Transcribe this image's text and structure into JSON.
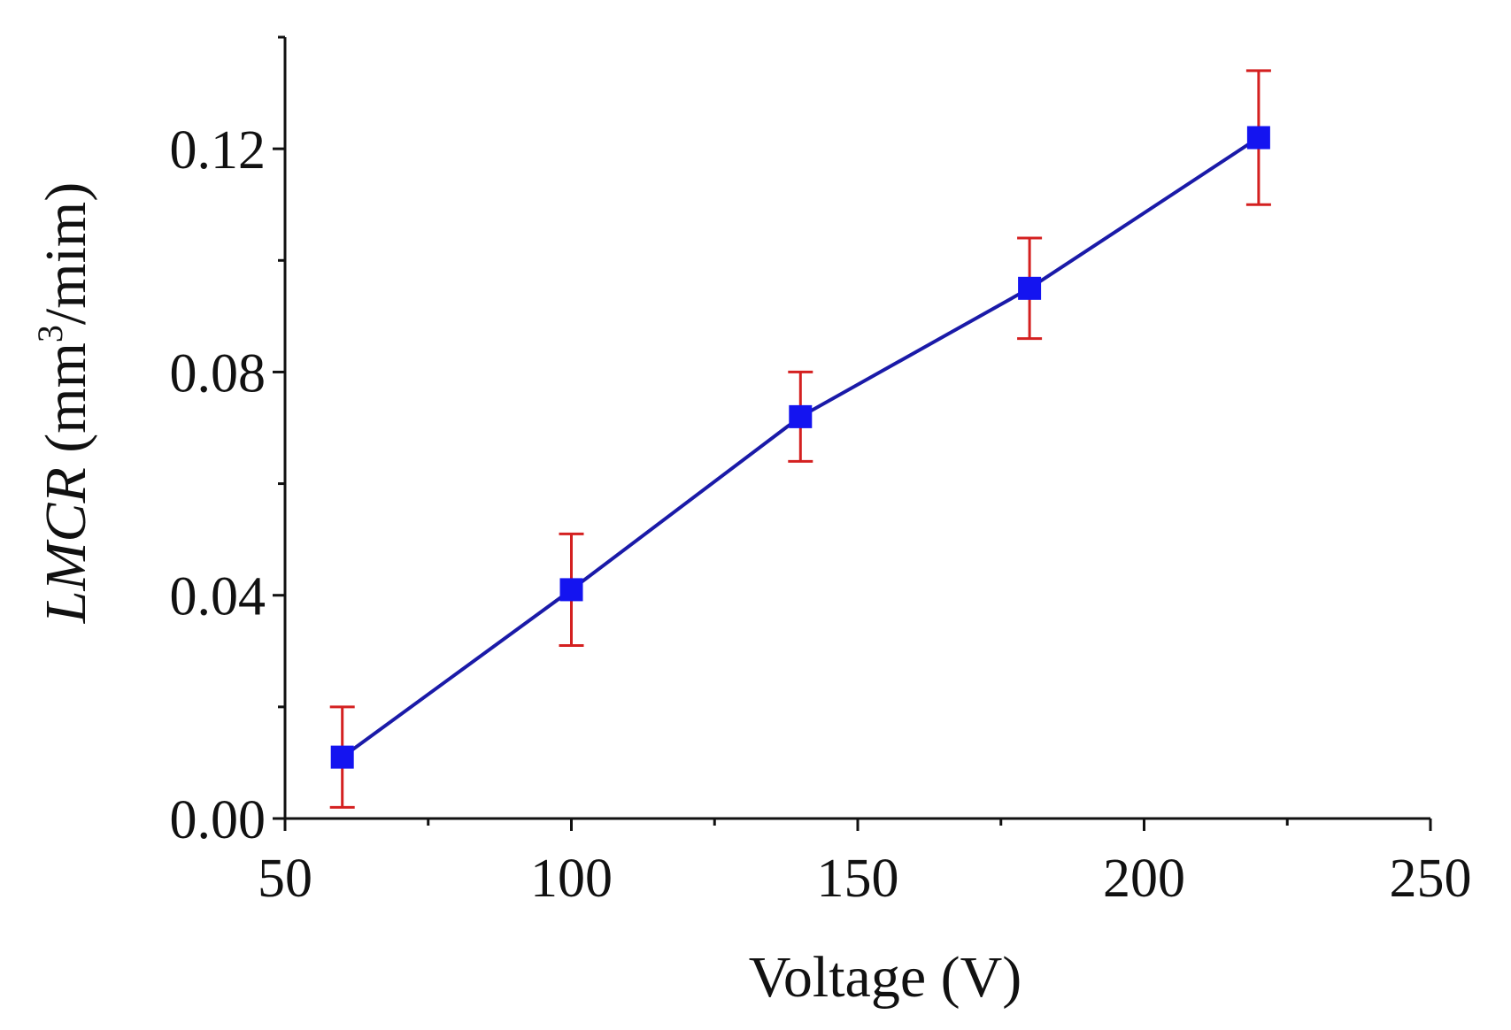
{
  "chart_data": {
    "type": "line",
    "title": "",
    "xlabel": "Voltage (V)",
    "ylabel": {
      "italic": "LMCR",
      "unit_prefix": " (mm",
      "unit_sup": "3",
      "unit_suffix": "/mim)"
    },
    "xlim": [
      50,
      250
    ],
    "ylim": [
      0,
      0.14
    ],
    "x_ticks": [
      "50",
      "100",
      "150",
      "200",
      "250"
    ],
    "x_tick_values": [
      50,
      100,
      150,
      200,
      250
    ],
    "x_minor_step": 25,
    "y_ticks": [
      "0.00",
      "0.04",
      "0.08",
      "0.12"
    ],
    "y_tick_values": [
      0,
      0.04,
      0.08,
      0.12
    ],
    "y_minor_step": 0.02,
    "series": [
      {
        "name": "LMCR",
        "color": "#1a1aa8",
        "marker_color": "#1414f0",
        "error_color": "#d42020",
        "x": [
          60,
          100,
          140,
          180,
          220
        ],
        "y": [
          0.011,
          0.041,
          0.072,
          0.095,
          0.122
        ],
        "err_low": [
          0.009,
          0.01,
          0.008,
          0.009,
          0.012
        ],
        "err_high": [
          0.009,
          0.01,
          0.008,
          0.009,
          0.012
        ]
      }
    ]
  }
}
